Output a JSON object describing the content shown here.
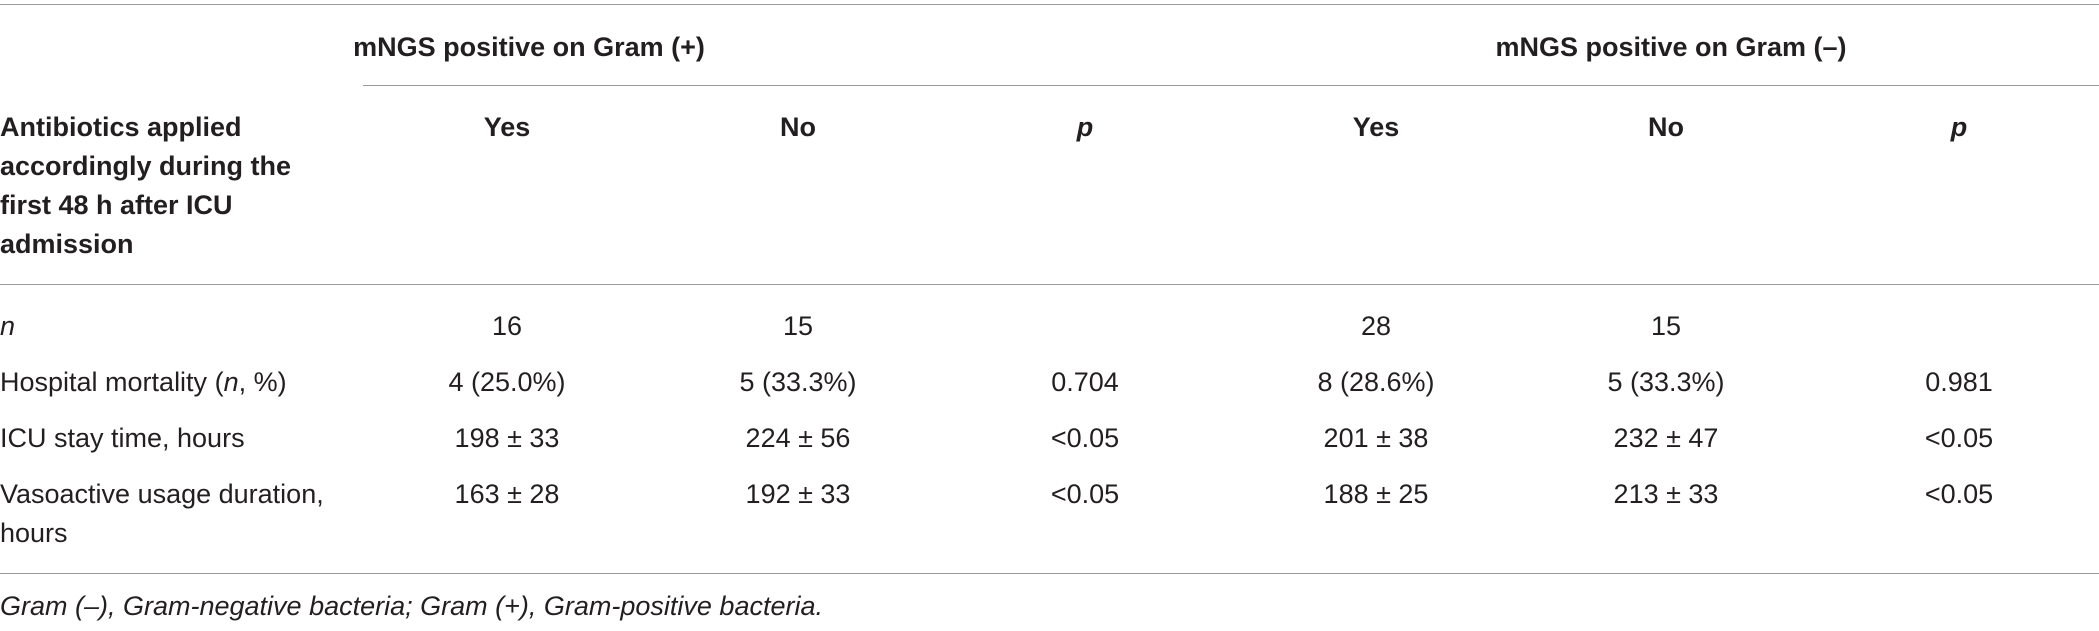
{
  "table": {
    "groups": [
      "mNGS positive on Gram (+)",
      "mNGS positive on Gram (–)"
    ],
    "corner": "Antibiotics applied accordingly during the first 48 h after ICU admission",
    "columns": [
      {
        "text": "Yes"
      },
      {
        "text": "No"
      },
      {
        "text": "p",
        "italic": true
      },
      {
        "text": "Yes"
      },
      {
        "text": "No"
      },
      {
        "text": "p",
        "italic": true
      }
    ],
    "rows": [
      {
        "label_parts": [
          {
            "text": "n",
            "italic": true
          }
        ],
        "cells": [
          "16",
          "15",
          null,
          "28",
          "15",
          null
        ]
      },
      {
        "label_parts": [
          {
            "text": "Hospital mortality ("
          },
          {
            "text": "n",
            "italic": true
          },
          {
            "text": ", %)"
          }
        ],
        "cells": [
          "4 (25.0%)",
          "5 (33.3%)",
          "0.704",
          "8 (28.6%)",
          "5 (33.3%)",
          "0.981"
        ]
      },
      {
        "label_parts": [
          {
            "text": "ICU stay time, hours"
          }
        ],
        "cells": [
          "198 ± 33",
          "224 ± 56",
          "<0.05",
          "201 ± 38",
          "232 ± 47",
          "<0.05"
        ]
      },
      {
        "label_parts": [
          {
            "text": "Vasoactive usage duration, hours"
          }
        ],
        "cells": [
          "163 ± 28",
          "192 ± 33",
          "<0.05",
          "188 ± 25",
          "213 ± 33",
          "<0.05"
        ]
      }
    ]
  },
  "footnote": "Gram (–), Gram-negative bacteria; Gram (+), Gram-positive bacteria."
}
